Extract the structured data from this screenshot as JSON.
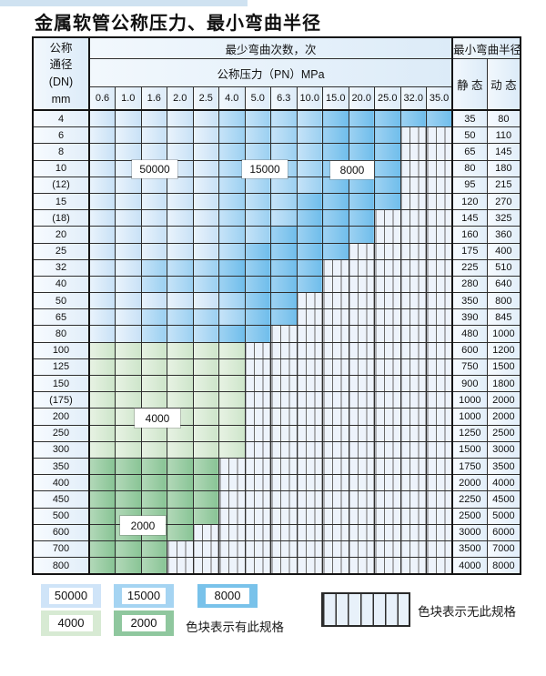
{
  "title": "金属软管公称压力、最小弯曲半径",
  "table": {
    "dn_header_lines": [
      "公称",
      "通径",
      "(DN)",
      "mm"
    ],
    "cycles_header": "最少弯曲次数，次",
    "pressure_header": "公称压力（PN）MPa",
    "pressures": [
      "0.6",
      "1.0",
      "1.6",
      "2.0",
      "2.5",
      "4.0",
      "5.0",
      "6.3",
      "10.0",
      "15.0",
      "20.0",
      "25.0",
      "32.0",
      "35.0"
    ],
    "radius_header": "最小弯曲半径",
    "static_header": "静 态",
    "dynamic_header": "动 态",
    "zone_legend_note": "cells: L=50000 cycles, M=15000, D=8000, G4=4000, G2=2000, N=no specification (striped)",
    "rows": [
      {
        "dn": "4",
        "static": "35",
        "dynamic": "80",
        "cells": [
          "L",
          "L",
          "L",
          "L",
          "L",
          "M",
          "M",
          "M",
          "M",
          "D",
          "D",
          "D",
          "D",
          "D"
        ]
      },
      {
        "dn": "6",
        "static": "50",
        "dynamic": "110",
        "cells": [
          "L",
          "L",
          "L",
          "L",
          "L",
          "M",
          "M",
          "M",
          "M",
          "D",
          "D",
          "D",
          "N",
          "N"
        ]
      },
      {
        "dn": "8",
        "static": "65",
        "dynamic": "145",
        "cells": [
          "L",
          "L",
          "L",
          "L",
          "L",
          "M",
          "M",
          "M",
          "M",
          "D",
          "D",
          "D",
          "N",
          "N"
        ]
      },
      {
        "dn": "10",
        "static": "80",
        "dynamic": "180",
        "cells": [
          "L",
          "L",
          "L",
          "L",
          "L",
          "M",
          "M",
          "M",
          "M",
          "D",
          "D",
          "D",
          "N",
          "N"
        ]
      },
      {
        "dn": "(12)",
        "static": "95",
        "dynamic": "215",
        "cells": [
          "L",
          "L",
          "L",
          "L",
          "L",
          "M",
          "M",
          "M",
          "M",
          "D",
          "D",
          "D",
          "N",
          "N"
        ]
      },
      {
        "dn": "15",
        "static": "120",
        "dynamic": "270",
        "cells": [
          "L",
          "L",
          "L",
          "L",
          "L",
          "M",
          "M",
          "M",
          "D",
          "D",
          "D",
          "D",
          "N",
          "N"
        ]
      },
      {
        "dn": "(18)",
        "static": "145",
        "dynamic": "325",
        "cells": [
          "L",
          "L",
          "L",
          "L",
          "L",
          "M",
          "M",
          "M",
          "D",
          "D",
          "D",
          "N",
          "N",
          "N"
        ]
      },
      {
        "dn": "20",
        "static": "160",
        "dynamic": "360",
        "cells": [
          "L",
          "L",
          "L",
          "L",
          "L",
          "M",
          "M",
          "D",
          "D",
          "D",
          "D",
          "N",
          "N",
          "N"
        ]
      },
      {
        "dn": "25",
        "static": "175",
        "dynamic": "400",
        "cells": [
          "L",
          "L",
          "L",
          "L",
          "L",
          "M",
          "D",
          "D",
          "D",
          "D",
          "N",
          "N",
          "N",
          "N"
        ]
      },
      {
        "dn": "32",
        "static": "225",
        "dynamic": "510",
        "cells": [
          "L",
          "L",
          "M",
          "M",
          "M",
          "D",
          "D",
          "D",
          "D",
          "N",
          "N",
          "N",
          "N",
          "N"
        ]
      },
      {
        "dn": "40",
        "static": "280",
        "dynamic": "640",
        "cells": [
          "L",
          "L",
          "M",
          "M",
          "M",
          "D",
          "D",
          "D",
          "D",
          "N",
          "N",
          "N",
          "N",
          "N"
        ]
      },
      {
        "dn": "50",
        "static": "350",
        "dynamic": "800",
        "cells": [
          "L",
          "L",
          "L",
          "L",
          "L",
          "M",
          "D",
          "D",
          "N",
          "N",
          "N",
          "N",
          "N",
          "N"
        ]
      },
      {
        "dn": "65",
        "static": "390",
        "dynamic": "845",
        "cells": [
          "L",
          "L",
          "M",
          "M",
          "M",
          "M",
          "D",
          "D",
          "N",
          "N",
          "N",
          "N",
          "N",
          "N"
        ]
      },
      {
        "dn": "80",
        "static": "480",
        "dynamic": "1000",
        "cells": [
          "L",
          "L",
          "M",
          "M",
          "M",
          "D",
          "D",
          "N",
          "N",
          "N",
          "N",
          "N",
          "N",
          "N"
        ]
      },
      {
        "dn": "100",
        "static": "600",
        "dynamic": "1200",
        "cells": [
          "G4",
          "G4",
          "G4",
          "G4",
          "G4",
          "G4",
          "N",
          "N",
          "N",
          "N",
          "N",
          "N",
          "N",
          "N"
        ]
      },
      {
        "dn": "125",
        "static": "750",
        "dynamic": "1500",
        "cells": [
          "G4",
          "G4",
          "G4",
          "G4",
          "G4",
          "G4",
          "N",
          "N",
          "N",
          "N",
          "N",
          "N",
          "N",
          "N"
        ]
      },
      {
        "dn": "150",
        "static": "900",
        "dynamic": "1800",
        "cells": [
          "G4",
          "G4",
          "G4",
          "G4",
          "G4",
          "G4",
          "N",
          "N",
          "N",
          "N",
          "N",
          "N",
          "N",
          "N"
        ]
      },
      {
        "dn": "(175)",
        "static": "1000",
        "dynamic": "2000",
        "cells": [
          "G4",
          "G4",
          "G4",
          "G4",
          "G4",
          "G4",
          "N",
          "N",
          "N",
          "N",
          "N",
          "N",
          "N",
          "N"
        ]
      },
      {
        "dn": "200",
        "static": "1000",
        "dynamic": "2000",
        "cells": [
          "G4",
          "G4",
          "G4",
          "G4",
          "G4",
          "G4",
          "N",
          "N",
          "N",
          "N",
          "N",
          "N",
          "N",
          "N"
        ]
      },
      {
        "dn": "250",
        "static": "1250",
        "dynamic": "2500",
        "cells": [
          "G4",
          "G4",
          "G4",
          "G4",
          "G4",
          "G4",
          "N",
          "N",
          "N",
          "N",
          "N",
          "N",
          "N",
          "N"
        ]
      },
      {
        "dn": "300",
        "static": "1500",
        "dynamic": "3000",
        "cells": [
          "G4",
          "G4",
          "G4",
          "G4",
          "G4",
          "G4",
          "N",
          "N",
          "N",
          "N",
          "N",
          "N",
          "N",
          "N"
        ]
      },
      {
        "dn": "350",
        "static": "1750",
        "dynamic": "3500",
        "cells": [
          "G2",
          "G2",
          "G2",
          "G2",
          "G2",
          "N",
          "N",
          "N",
          "N",
          "N",
          "N",
          "N",
          "N",
          "N"
        ]
      },
      {
        "dn": "400",
        "static": "2000",
        "dynamic": "4000",
        "cells": [
          "G2",
          "G2",
          "G2",
          "G2",
          "G2",
          "N",
          "N",
          "N",
          "N",
          "N",
          "N",
          "N",
          "N",
          "N"
        ]
      },
      {
        "dn": "450",
        "static": "2250",
        "dynamic": "4500",
        "cells": [
          "G2",
          "G2",
          "G2",
          "G2",
          "G2",
          "N",
          "N",
          "N",
          "N",
          "N",
          "N",
          "N",
          "N",
          "N"
        ]
      },
      {
        "dn": "500",
        "static": "2500",
        "dynamic": "5000",
        "cells": [
          "G2",
          "G2",
          "G2",
          "G2",
          "G2",
          "N",
          "N",
          "N",
          "N",
          "N",
          "N",
          "N",
          "N",
          "N"
        ]
      },
      {
        "dn": "600",
        "static": "3000",
        "dynamic": "6000",
        "cells": [
          "G2",
          "G2",
          "G2",
          "G2",
          "N",
          "N",
          "N",
          "N",
          "N",
          "N",
          "N",
          "N",
          "N",
          "N"
        ]
      },
      {
        "dn": "700",
        "static": "3500",
        "dynamic": "7000",
        "cells": [
          "G2",
          "G2",
          "G2",
          "N",
          "N",
          "N",
          "N",
          "N",
          "N",
          "N",
          "N",
          "N",
          "N",
          "N"
        ]
      },
      {
        "dn": "800",
        "static": "4000",
        "dynamic": "8000",
        "cells": [
          "G2",
          "G2",
          "G2",
          "N",
          "N",
          "N",
          "N",
          "N",
          "N",
          "N",
          "N",
          "N",
          "N",
          "N"
        ]
      }
    ],
    "overlays": [
      {
        "label": "50000"
      },
      {
        "label": "15000"
      },
      {
        "label": "8000"
      },
      {
        "label": "4000"
      },
      {
        "label": "2000"
      }
    ]
  },
  "zone_colors": {
    "cycles_50000": "#cfe4f8",
    "cycles_15000": "#a5d4f2",
    "cycles_8000": "#79c2ea",
    "cycles_4000": "#d7ead3",
    "cycles_2000": "#8fc79e",
    "no_spec_background": "#edf3fb"
  },
  "legend": {
    "items": [
      {
        "label": "50000",
        "zone": "L"
      },
      {
        "label": "15000",
        "zone": "M"
      },
      {
        "label": "8000",
        "zone": "D"
      },
      {
        "label": "4000",
        "zone": "G4"
      },
      {
        "label": "2000",
        "zone": "G2"
      }
    ],
    "has_spec_text": "色块表示有此规格",
    "no_spec_text": "色块表示无此规格"
  }
}
